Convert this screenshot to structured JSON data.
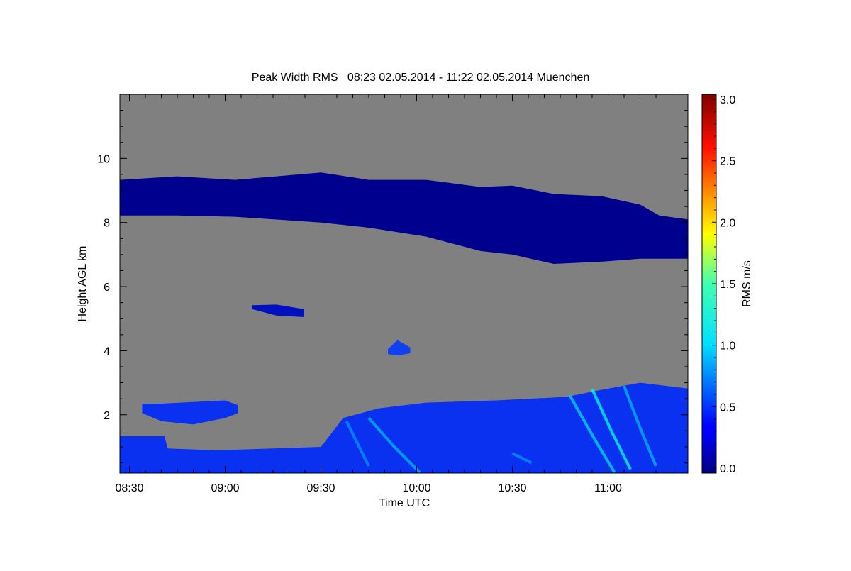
{
  "chart_data": {
    "type": "heatmap",
    "title": "Peak Width RMS   08:23 02.05.2014 - 11:22 02.05.2014 Muenchen",
    "xlabel": "Time UTC",
    "ylabel": "Height AGL km",
    "x_unit": "minutes since 00:00 UTC",
    "xlim": [
      507,
      685
    ],
    "ylim": [
      0.18,
      12.0
    ],
    "x_ticks": [
      {
        "value": 510,
        "label": "08:30"
      },
      {
        "value": 540,
        "label": "09:00"
      },
      {
        "value": 570,
        "label": "09:30"
      },
      {
        "value": 600,
        "label": "10:00"
      },
      {
        "value": 630,
        "label": "10:30"
      },
      {
        "value": 660,
        "label": "11:00"
      }
    ],
    "y_ticks": [
      {
        "value": 2,
        "label": "2"
      },
      {
        "value": 4,
        "label": "4"
      },
      {
        "value": 6,
        "label": "6"
      },
      {
        "value": 8,
        "label": "8"
      },
      {
        "value": 10,
        "label": "10"
      }
    ],
    "background_color": "#808080",
    "colorbar": {
      "label": "RMS m/s",
      "range": [
        0.0,
        3.0
      ],
      "colormap": "jet",
      "ticks": [
        {
          "value": 0.0,
          "label": "0.0"
        },
        {
          "value": 0.5,
          "label": "0.5"
        },
        {
          "value": 1.0,
          "label": "1.0"
        },
        {
          "value": 1.5,
          "label": "1.5"
        },
        {
          "value": 2.0,
          "label": "2.0"
        },
        {
          "value": 2.5,
          "label": "2.5"
        },
        {
          "value": 3.0,
          "label": "3.0"
        }
      ]
    },
    "regions": [
      {
        "name": "upper-cloud-layer",
        "value": 0.05,
        "color": "#00008f",
        "time": [
          507,
          525,
          543,
          570,
          585,
          603,
          620,
          630,
          643,
          658,
          670,
          676,
          685
        ],
        "top": [
          9.33,
          9.44,
          9.33,
          9.56,
          9.33,
          9.33,
          9.11,
          9.15,
          8.89,
          8.82,
          8.56,
          8.22,
          8.1
        ],
        "bottom": [
          8.22,
          8.22,
          8.18,
          8.0,
          7.84,
          7.56,
          7.11,
          7.0,
          6.71,
          6.78,
          6.87,
          6.87,
          6.87
        ]
      },
      {
        "name": "boundary-layer",
        "value": 0.35,
        "color": "#0a30f0",
        "time": [
          507,
          521,
          522,
          537,
          555,
          570,
          577,
          588,
          603,
          625,
          647,
          658,
          670,
          685
        ],
        "top": [
          1.33,
          1.33,
          0.95,
          0.89,
          0.95,
          1.0,
          1.9,
          2.2,
          2.38,
          2.45,
          2.56,
          2.78,
          3.0,
          2.82
        ],
        "bottom": [
          0.18,
          0.18,
          0.18,
          0.18,
          0.18,
          0.18,
          0.18,
          0.18,
          0.18,
          0.18,
          0.18,
          0.18,
          0.18,
          0.18
        ]
      },
      {
        "name": "aerosol-patch-2km",
        "value": 0.3,
        "color": "#0a30f0",
        "time": [
          514,
          520,
          530,
          540,
          544
        ],
        "top": [
          2.35,
          2.35,
          2.4,
          2.45,
          2.3
        ],
        "bottom": [
          2.05,
          1.8,
          1.7,
          1.9,
          2.05
        ]
      },
      {
        "name": "cloud-patch-5km",
        "value": 0.1,
        "color": "#0010c0",
        "time": [
          548.4,
          556,
          564.7
        ],
        "top": [
          5.42,
          5.44,
          5.3
        ],
        "bottom": [
          5.3,
          5.1,
          5.05
        ]
      },
      {
        "name": "cloud-patch-4km",
        "value": 0.25,
        "color": "#1040f0",
        "time": [
          591,
          594,
          598
        ],
        "top": [
          4.05,
          4.33,
          4.1
        ],
        "bottom": [
          3.9,
          3.85,
          3.92
        ]
      }
    ],
    "streaks": [
      {
        "value": 0.9,
        "time": [
          585,
          593,
          601
        ],
        "height": [
          1.9,
          1.0,
          0.2
        ]
      },
      {
        "value": 0.8,
        "time": [
          578,
          585
        ],
        "height": [
          1.8,
          0.4
        ]
      },
      {
        "value": 1.0,
        "time": [
          648,
          656,
          662
        ],
        "height": [
          2.6,
          1.2,
          0.2
        ]
      },
      {
        "value": 1.1,
        "time": [
          655,
          661,
          667
        ],
        "height": [
          2.8,
          1.5,
          0.3
        ]
      },
      {
        "value": 0.9,
        "time": [
          665,
          670,
          675
        ],
        "height": [
          2.9,
          1.6,
          0.4
        ]
      },
      {
        "value": 0.8,
        "time": [
          630,
          636
        ],
        "height": [
          0.8,
          0.5
        ]
      }
    ]
  }
}
